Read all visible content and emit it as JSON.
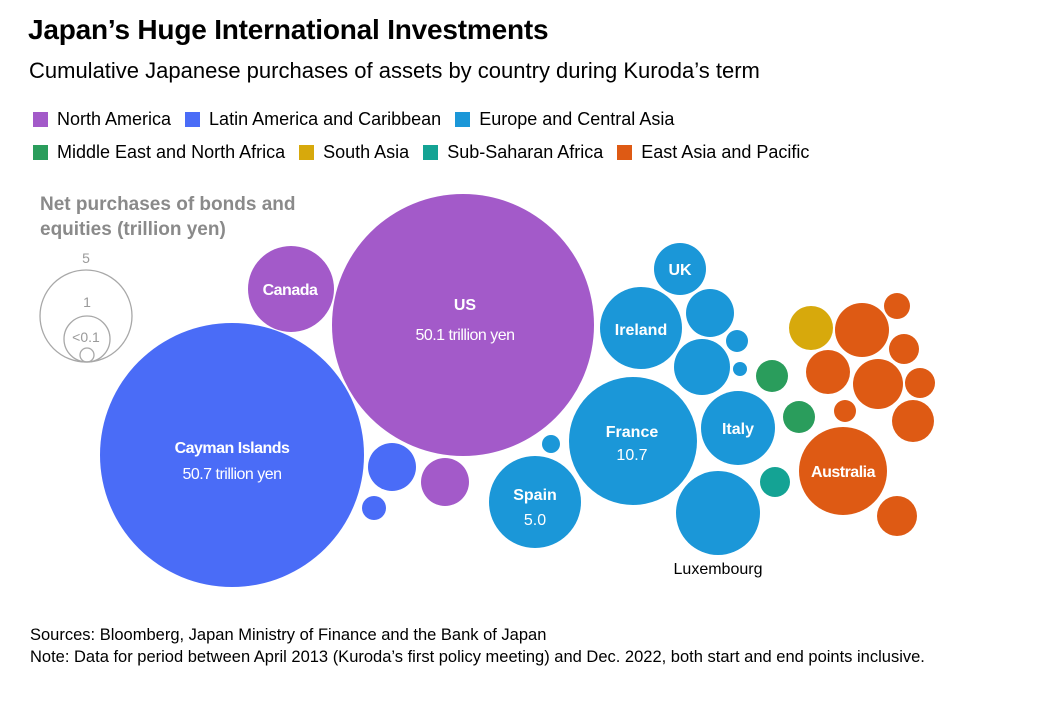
{
  "title": "Japan’s Huge International Investments",
  "subtitle": "Cumulative Japanese purchases of assets by country during Kuroda’s term",
  "legend": [
    {
      "label": "North America",
      "color": "#a35ac9"
    },
    {
      "label": "Latin America and Caribbean",
      "color": "#4a6cf7"
    },
    {
      "label": "Europe and Central Asia",
      "color": "#1b97d8"
    },
    {
      "label": "Middle East and North Africa",
      "color": "#2a9d5c"
    },
    {
      "label": "South Asia",
      "color": "#d7a90c"
    },
    {
      "label": "Sub-Saharan Africa",
      "color": "#14a394"
    },
    {
      "label": "East Asia and Pacific",
      "color": "#de5a14"
    }
  ],
  "size_key": {
    "title_line1": "Net purchases of bonds and",
    "title_line2": "equities (trillion yen)",
    "values": [
      "5",
      "1",
      "<0.1"
    ]
  },
  "chart_data": {
    "type": "bubble",
    "title": "Japan’s Huge International Investments",
    "subtitle": "Cumulative Japanese purchases of assets by country during Kuroda’s term",
    "unit": "trillion yen",
    "bubbles": [
      {
        "label": "Cayman Islands",
        "value": 50.7,
        "value_label": "50.7 trillion yen",
        "region": "Latin America and Caribbean"
      },
      {
        "label": "US",
        "value": 50.1,
        "value_label": "50.1 trillion yen",
        "region": "North America"
      },
      {
        "label": "Canada",
        "value": 7.0,
        "value_label": "",
        "region": "North America"
      },
      {
        "label": "",
        "value": 2.5,
        "value_label": "",
        "region": "North America"
      },
      {
        "label": "",
        "value": 2.5,
        "value_label": "",
        "region": "Latin America and Caribbean"
      },
      {
        "label": "",
        "value": 0.65,
        "value_label": "",
        "region": "Latin America and Caribbean"
      },
      {
        "label": "France",
        "value": 10.7,
        "value_label": "10.7",
        "region": "Europe and Central Asia"
      },
      {
        "label": "Spain",
        "value": 5.0,
        "value_label": "5.0",
        "region": "Europe and Central Asia"
      },
      {
        "label": "Luxembourg",
        "value": 5.4,
        "value_label": "",
        "region": "Europe and Central Asia"
      },
      {
        "label": "Italy",
        "value": 3.3,
        "value_label": "",
        "region": "Europe and Central Asia"
      },
      {
        "label": "Ireland",
        "value": 4.4,
        "value_label": "",
        "region": "Europe and Central Asia"
      },
      {
        "label": "UK",
        "value": 1.8,
        "value_label": "",
        "region": "Europe and Central Asia"
      },
      {
        "label": "",
        "value": 1.5,
        "value_label": "",
        "region": "Europe and Central Asia"
      },
      {
        "label": "",
        "value": 2.1,
        "value_label": "",
        "region": "Europe and Central Asia"
      },
      {
        "label": "",
        "value": 0.3,
        "value_label": "",
        "region": "Europe and Central Asia"
      },
      {
        "label": "",
        "value": 0.1,
        "value_label": "",
        "region": "Europe and Central Asia"
      },
      {
        "label": "",
        "value": 0.25,
        "value_label": "",
        "region": "Europe and Central Asia"
      },
      {
        "label": "Australia",
        "value": 5.0,
        "value_label": "",
        "region": "East Asia and Pacific"
      },
      {
        "label": "",
        "value": 1.75,
        "value_label": "",
        "region": "East Asia and Pacific"
      },
      {
        "label": "",
        "value": 1.55,
        "value_label": "",
        "region": "East Asia and Pacific"
      },
      {
        "label": "",
        "value": 1.2,
        "value_label": "",
        "region": "East Asia and Pacific"
      },
      {
        "label": "",
        "value": 1.05,
        "value_label": "",
        "region": "East Asia and Pacific"
      },
      {
        "label": "",
        "value": 0.95,
        "value_label": "",
        "region": "East Asia and Pacific"
      },
      {
        "label": "",
        "value": 0.55,
        "value_label": "",
        "region": "East Asia and Pacific"
      },
      {
        "label": "",
        "value": 0.55,
        "value_label": "",
        "region": "East Asia and Pacific"
      },
      {
        "label": "",
        "value": 0.45,
        "value_label": "",
        "region": "East Asia and Pacific"
      },
      {
        "label": "",
        "value": 0.35,
        "value_label": "",
        "region": "East Asia and Pacific"
      },
      {
        "label": "",
        "value": 0.2,
        "value_label": "",
        "region": "East Asia and Pacific"
      },
      {
        "label": "",
        "value": 0.85,
        "value_label": "",
        "region": "South Asia"
      },
      {
        "label": "",
        "value": 0.4,
        "value_label": "",
        "region": "Middle East and North Africa"
      },
      {
        "label": "",
        "value": 0.4,
        "value_label": "",
        "region": "Middle East and North Africa"
      },
      {
        "label": "",
        "value": 0.35,
        "value_label": "",
        "region": "Sub-Saharan Africa"
      }
    ]
  },
  "notes": {
    "sources": "Sources: Bloomberg, Japan Ministry of Finance and the Bank of Japan",
    "note": "Note: Data for period between April 2013 (Kuroda’s first policy meeting) and Dec. 2022, both start and end points inclusive."
  }
}
